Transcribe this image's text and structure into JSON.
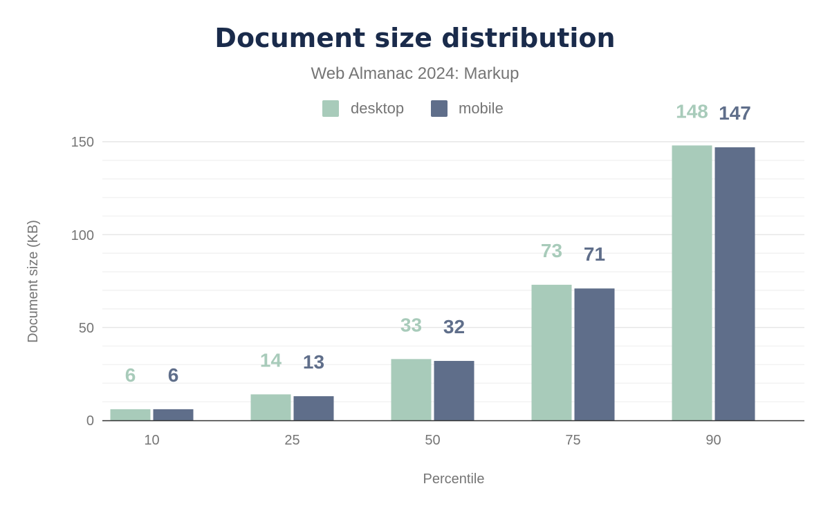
{
  "chart_data": {
    "type": "bar",
    "title": "Document size distribution",
    "subtitle": "Web Almanac 2024: Markup",
    "xlabel": "Percentile",
    "ylabel": "Document size (KB)",
    "categories": [
      "10",
      "25",
      "50",
      "75",
      "90"
    ],
    "series": [
      {
        "name": "desktop",
        "color": "#a8cbba",
        "values": [
          6,
          14,
          33,
          73,
          148
        ]
      },
      {
        "name": "mobile",
        "color": "#5f6e8a",
        "values": [
          6,
          13,
          32,
          71,
          147
        ]
      }
    ],
    "ylim": [
      0,
      150
    ],
    "yticks": [
      "0",
      "50",
      "100",
      "150"
    ],
    "grid": true,
    "legend": "top-center"
  }
}
